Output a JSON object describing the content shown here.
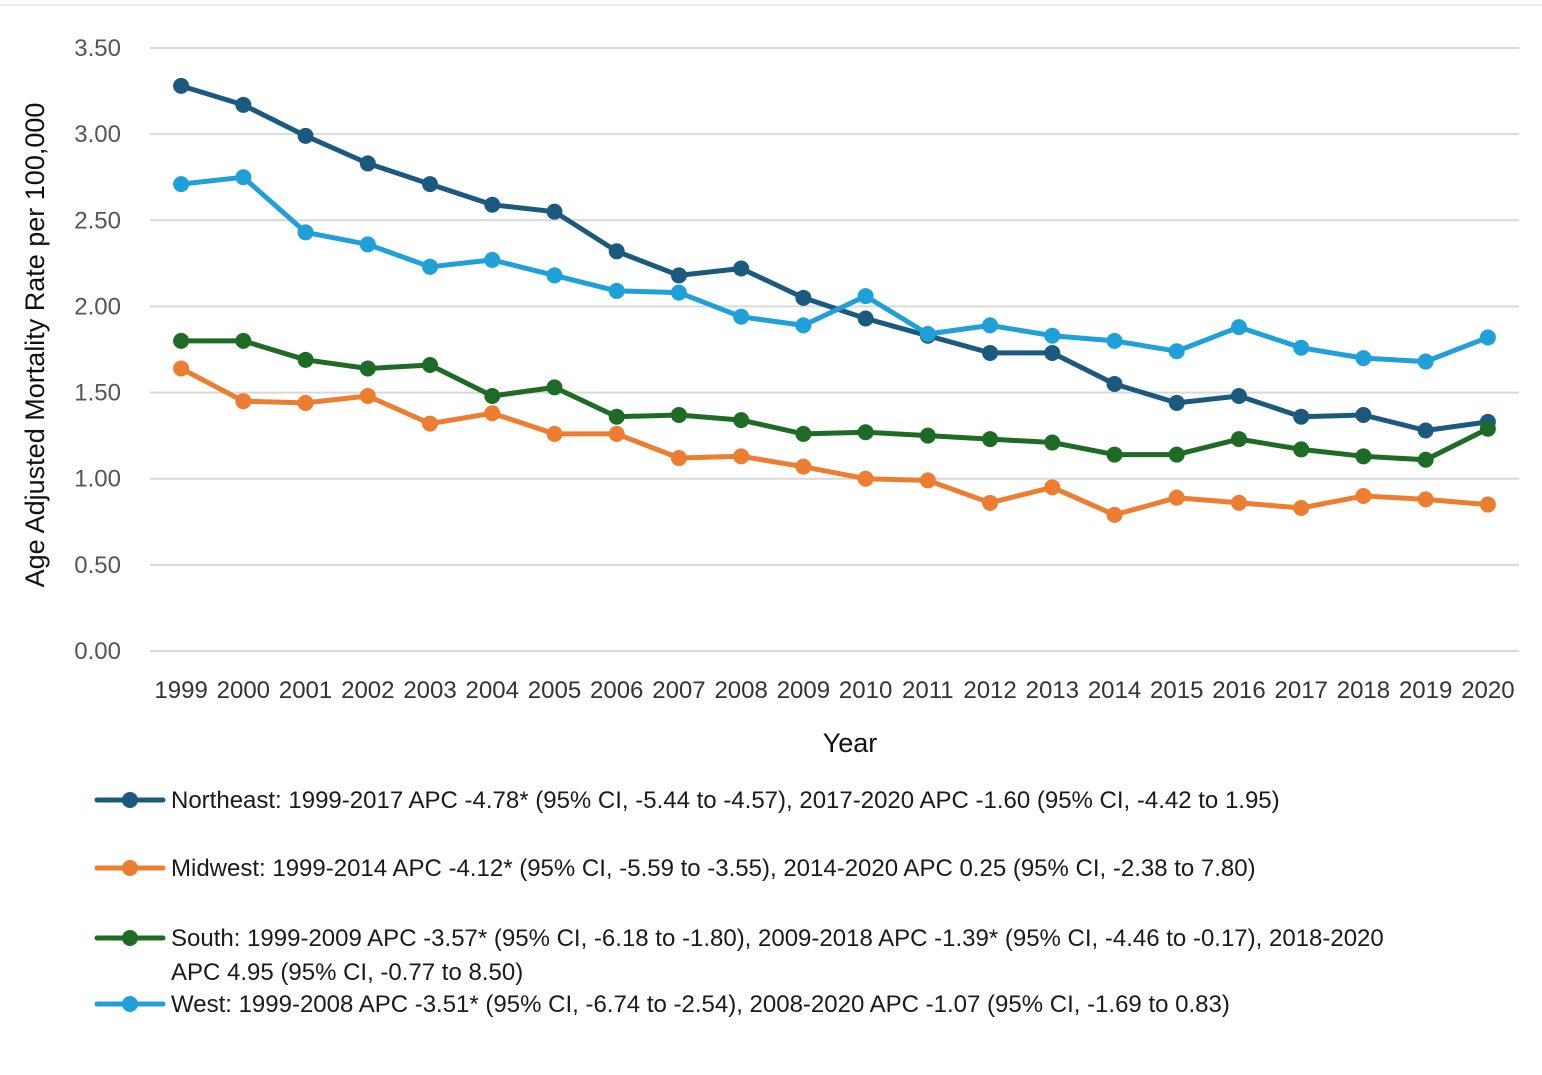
{
  "chart_data": {
    "type": "line",
    "title": "",
    "xlabel": "Year",
    "ylabel": "Age Adjusted Mortality Rate per 100,000",
    "ylim": [
      0,
      3.5
    ],
    "yticks": [
      "0.00",
      "0.50",
      "1.00",
      "1.50",
      "2.00",
      "2.50",
      "3.00",
      "3.50"
    ],
    "grid": "horizontal",
    "legend_position": "bottom",
    "x": [
      "1999",
      "2000",
      "2001",
      "2002",
      "2003",
      "2004",
      "2005",
      "2006",
      "2007",
      "2008",
      "2009",
      "2010",
      "2011",
      "2012",
      "2013",
      "2014",
      "2015",
      "2016",
      "2017",
      "2018",
      "2019",
      "2020"
    ],
    "series": [
      {
        "name": "Northeast: 1999-2017 APC -4.78* (95% CI, -5.44 to -4.57), 2017-2020 APC -1.60 (95% CI, -4.42 to 1.95)",
        "legend_lines": [
          "Northeast: 1999-2017 APC -4.78* (95% CI, -5.44 to -4.57), 2017-2020 APC -1.60 (95% CI, -4.42 to 1.95)"
        ],
        "color": "#1b5a7e",
        "values": [
          3.28,
          3.17,
          2.99,
          2.83,
          2.71,
          2.59,
          2.55,
          2.32,
          2.18,
          2.22,
          2.05,
          1.93,
          1.83,
          1.73,
          1.73,
          1.55,
          1.44,
          1.48,
          1.36,
          1.37,
          1.28,
          1.33
        ]
      },
      {
        "name": "Midwest: 1999-2014 APC -4.12* (95% CI, -5.59 to -3.55), 2014-2020 APC 0.25 (95% CI, -2.38 to 7.80)",
        "legend_lines": [
          "Midwest: 1999-2014 APC -4.12* (95% CI, -5.59 to -3.55), 2014-2020 APC 0.25 (95% CI, -2.38 to 7.80)"
        ],
        "color": "#ed7d31",
        "values": [
          1.64,
          1.45,
          1.44,
          1.48,
          1.32,
          1.38,
          1.26,
          1.26,
          1.12,
          1.13,
          1.07,
          1.0,
          0.99,
          0.86,
          0.95,
          0.79,
          0.89,
          0.86,
          0.83,
          0.9,
          0.88,
          0.85
        ]
      },
      {
        "name": "South: 1999-2009 APC -3.57* (95% CI, -6.18 to -1.80), 2009-2018 APC -1.39* (95% CI, -4.46 to -0.17), 2018-2020 APC 4.95 (95% CI, -0.77 to 8.50)",
        "legend_lines": [
          "South: 1999-2009 APC -3.57* (95% CI, -6.18 to -1.80), 2009-2018 APC -1.39* (95% CI, -4.46 to -0.17), 2018-2020",
          "APC 4.95 (95% CI, -0.77 to 8.50)"
        ],
        "color": "#1e6b25",
        "values": [
          1.8,
          1.8,
          1.69,
          1.64,
          1.66,
          1.48,
          1.53,
          1.36,
          1.37,
          1.34,
          1.26,
          1.27,
          1.25,
          1.23,
          1.21,
          1.14,
          1.14,
          1.23,
          1.17,
          1.13,
          1.11,
          1.29
        ]
      },
      {
        "name": "West: 1999-2008 APC -3.51* (95% CI, -6.74 to -2.54), 2008-2020 APC -1.07 (95% CI, -1.69 to 0.83)",
        "legend_lines": [
          "West: 1999-2008 APC -3.51* (95% CI, -6.74 to -2.54), 2008-2020 APC -1.07 (95% CI, -1.69 to 0.83)"
        ],
        "color": "#1fa0d8",
        "values": [
          2.71,
          2.75,
          2.43,
          2.36,
          2.23,
          2.27,
          2.18,
          2.09,
          2.08,
          1.94,
          1.89,
          2.06,
          1.84,
          1.89,
          1.83,
          1.8,
          1.74,
          1.88,
          1.76,
          1.7,
          1.68,
          1.82
        ]
      }
    ]
  },
  "colors": {
    "grid": "#d9d9d9",
    "frame": "#d9d9d9",
    "tick_text": "#555555"
  }
}
